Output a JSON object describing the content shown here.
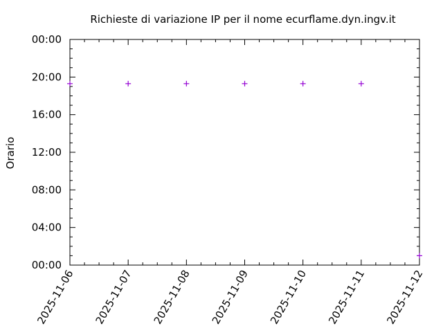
{
  "chart_data": {
    "type": "scatter",
    "title": "Richieste di variazione IP per il nome ecurflame.dyn.ingv.it",
    "xlabel": "",
    "ylabel": "Orario",
    "x_ticks": [
      "2025-11-06",
      "2025-11-07",
      "2025-11-08",
      "2025-11-09",
      "2025-11-10",
      "2025-11-11",
      "2025-11-12"
    ],
    "y_ticks": [
      "00:00",
      "04:00",
      "08:00",
      "12:00",
      "16:00",
      "20:00",
      "00:00"
    ],
    "xlim": [
      "2025-11-06",
      "2025-11-12"
    ],
    "ylim_hours": [
      0,
      24
    ],
    "grid": false,
    "marker": "+",
    "marker_color": "#9400d3",
    "points": [
      {
        "date": "2025-11-06",
        "hours": 19.3
      },
      {
        "date": "2025-11-07",
        "hours": 19.3
      },
      {
        "date": "2025-11-08",
        "hours": 19.3
      },
      {
        "date": "2025-11-09",
        "hours": 19.3
      },
      {
        "date": "2025-11-10",
        "hours": 19.3
      },
      {
        "date": "2025-11-11",
        "hours": 19.3
      },
      {
        "date": "2025-11-12",
        "hours": 1.0
      }
    ]
  }
}
